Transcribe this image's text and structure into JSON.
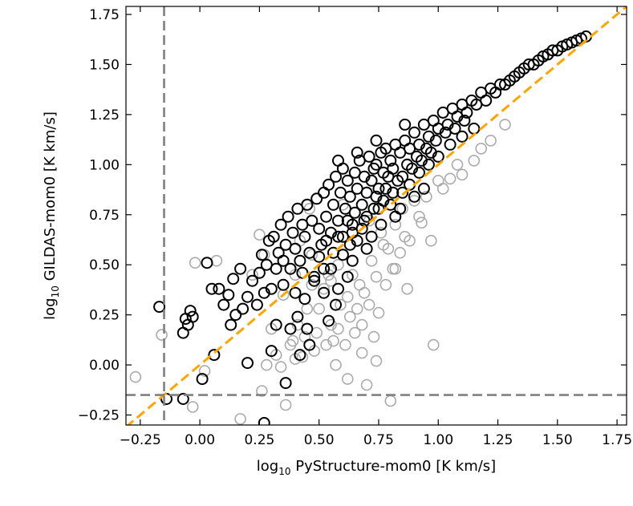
{
  "chart_data": {
    "type": "scatter",
    "xlabel": {
      "prefix": "log",
      "sub": "10",
      "text": " PyStructure-mom0 [K km/s]"
    },
    "ylabel": {
      "prefix": "log",
      "sub": "10",
      "text": " GILDAS-mom0 [K km/s]"
    },
    "xlim": [
      -0.31,
      1.79
    ],
    "ylim": [
      -0.3,
      1.79
    ],
    "xticks": [
      -0.25,
      0.0,
      0.25,
      0.5,
      0.75,
      1.0,
      1.25,
      1.5,
      1.75
    ],
    "yticks": [
      -0.25,
      0.0,
      0.25,
      0.5,
      0.75,
      1.0,
      1.25,
      1.5,
      1.75
    ],
    "xtick_labels": [
      "−0.25",
      "0.00",
      "0.25",
      "0.50",
      "0.75",
      "1.00",
      "1.25",
      "1.50",
      "1.75"
    ],
    "ytick_labels": [
      "−0.25",
      "0.00",
      "0.25",
      "0.50",
      "0.75",
      "1.00",
      "1.25",
      "1.50",
      "1.75"
    ],
    "grid": false,
    "colors": {
      "detected": "#000000",
      "other": "#aaaaaa",
      "one_to_one": "#ffa500",
      "threshold": "#808080"
    },
    "reference_lines": [
      {
        "type": "one-to-one",
        "style": "dashed",
        "color": "#ffa500"
      },
      {
        "type": "vertical",
        "x": -0.15,
        "style": "dashed",
        "color": "#808080"
      },
      {
        "type": "horizontal",
        "y": -0.15,
        "style": "dashed",
        "color": "#808080"
      }
    ],
    "series": [
      {
        "marker": "open-circle",
        "color": "#aaaaaa",
        "points": [
          [
            -0.27,
            -0.06
          ],
          [
            -0.16,
            0.15
          ],
          [
            -0.02,
            0.51
          ],
          [
            -0.03,
            -0.21
          ],
          [
            0.02,
            -0.03
          ],
          [
            0.07,
            0.52
          ],
          [
            0.17,
            -0.27
          ],
          [
            0.22,
            0.45
          ],
          [
            0.25,
            0.65
          ],
          [
            0.27,
            0.55
          ],
          [
            0.26,
            -0.13
          ],
          [
            0.28,
            0.0
          ],
          [
            0.3,
            0.18
          ],
          [
            0.32,
            0.05
          ],
          [
            0.34,
            -0.01
          ],
          [
            0.35,
            0.35
          ],
          [
            0.36,
            -0.2
          ],
          [
            0.38,
            0.1
          ],
          [
            0.39,
            0.12
          ],
          [
            0.4,
            0.45
          ],
          [
            0.41,
            0.2
          ],
          [
            0.42,
            0.62
          ],
          [
            0.43,
            0.04
          ],
          [
            0.44,
            0.14
          ],
          [
            0.45,
            0.28
          ],
          [
            0.46,
            0.78
          ],
          [
            0.47,
            0.4
          ],
          [
            0.48,
            0.07
          ],
          [
            0.49,
            0.16
          ],
          [
            0.5,
            0.28
          ],
          [
            0.52,
            0.38
          ],
          [
            0.53,
            0.1
          ],
          [
            0.54,
            0.45
          ],
          [
            0.55,
            0.2
          ],
          [
            0.56,
            0.12
          ],
          [
            0.57,
            0.0
          ],
          [
            0.58,
            0.5
          ],
          [
            0.59,
            0.3
          ],
          [
            0.6,
            0.8
          ],
          [
            0.61,
            0.1
          ],
          [
            0.62,
            0.34
          ],
          [
            0.63,
            0.24
          ],
          [
            0.64,
            0.45
          ],
          [
            0.65,
            0.16
          ],
          [
            0.66,
            0.28
          ],
          [
            0.67,
            0.4
          ],
          [
            0.68,
            0.2
          ],
          [
            0.69,
            0.36
          ],
          [
            0.7,
            -0.1
          ],
          [
            0.71,
            0.3
          ],
          [
            0.72,
            0.52
          ],
          [
            0.73,
            0.14
          ],
          [
            0.74,
            0.44
          ],
          [
            0.75,
            0.26
          ],
          [
            0.76,
            0.66
          ],
          [
            0.77,
            0.6
          ],
          [
            0.78,
            0.4
          ],
          [
            0.79,
            0.58
          ],
          [
            0.8,
            -0.18
          ],
          [
            0.81,
            0.48
          ],
          [
            0.82,
            0.7
          ],
          [
            0.84,
            0.56
          ],
          [
            0.85,
            0.78
          ],
          [
            0.86,
            0.64
          ],
          [
            0.87,
            0.38
          ],
          [
            0.88,
            0.62
          ],
          [
            0.9,
            0.82
          ],
          [
            0.92,
            0.74
          ],
          [
            0.95,
            0.84
          ],
          [
            0.97,
            0.62
          ],
          [
            0.98,
            0.1
          ],
          [
            1.0,
            0.92
          ],
          [
            1.02,
            0.88
          ],
          [
            1.05,
            0.93
          ],
          [
            1.08,
            1.0
          ],
          [
            1.1,
            0.95
          ],
          [
            1.15,
            1.02
          ],
          [
            1.18,
            1.08
          ],
          [
            1.22,
            1.12
          ],
          [
            1.28,
            1.2
          ],
          [
            0.68,
            0.06
          ],
          [
            0.74,
            0.02
          ],
          [
            0.62,
            -0.07
          ],
          [
            0.55,
            0.42
          ],
          [
            0.47,
            0.55
          ],
          [
            0.82,
            0.48
          ],
          [
            0.58,
            0.18
          ],
          [
            0.71,
            0.72
          ],
          [
            0.93,
            0.71
          ],
          [
            0.4,
            0.03
          ]
        ]
      },
      {
        "marker": "open-circle",
        "color": "#000000",
        "points": [
          [
            -0.17,
            0.29
          ],
          [
            -0.14,
            -0.17
          ],
          [
            -0.07,
            0.16
          ],
          [
            -0.06,
            0.23
          ],
          [
            -0.05,
            0.2
          ],
          [
            -0.04,
            0.27
          ],
          [
            -0.03,
            0.24
          ],
          [
            -0.07,
            -0.17
          ],
          [
            0.01,
            -0.07
          ],
          [
            0.03,
            0.51
          ],
          [
            0.05,
            0.38
          ],
          [
            0.06,
            0.05
          ],
          [
            0.08,
            0.38
          ],
          [
            0.1,
            0.3
          ],
          [
            0.12,
            0.35
          ],
          [
            0.13,
            0.2
          ],
          [
            0.14,
            0.43
          ],
          [
            0.15,
            0.25
          ],
          [
            0.17,
            0.48
          ],
          [
            0.18,
            0.28
          ],
          [
            0.2,
            0.34
          ],
          [
            0.2,
            0.01
          ],
          [
            0.22,
            0.42
          ],
          [
            0.24,
            0.3
          ],
          [
            0.25,
            0.46
          ],
          [
            0.26,
            0.55
          ],
          [
            0.27,
            0.36
          ],
          [
            0.28,
            0.5
          ],
          [
            0.29,
            0.62
          ],
          [
            0.3,
            0.38
          ],
          [
            0.31,
            0.64
          ],
          [
            0.32,
            0.2
          ],
          [
            0.33,
            0.56
          ],
          [
            0.34,
            0.7
          ],
          [
            0.35,
            0.4
          ],
          [
            0.36,
            0.6
          ],
          [
            0.37,
            0.74
          ],
          [
            0.38,
            0.48
          ],
          [
            0.39,
            0.66
          ],
          [
            0.4,
            0.58
          ],
          [
            0.41,
            0.78
          ],
          [
            0.42,
            0.52
          ],
          [
            0.43,
            0.7
          ],
          [
            0.44,
            0.64
          ],
          [
            0.45,
            0.8
          ],
          [
            0.46,
            0.56
          ],
          [
            0.47,
            0.72
          ],
          [
            0.48,
            0.44
          ],
          [
            0.49,
            0.83
          ],
          [
            0.5,
            0.68
          ],
          [
            0.51,
            0.6
          ],
          [
            0.52,
            0.86
          ],
          [
            0.53,
            0.74
          ],
          [
            0.54,
            0.9
          ],
          [
            0.55,
            0.66
          ],
          [
            0.56,
            0.8
          ],
          [
            0.57,
            0.94
          ],
          [
            0.58,
            0.72
          ],
          [
            0.59,
            0.86
          ],
          [
            0.6,
            0.98
          ],
          [
            0.61,
            0.78
          ],
          [
            0.62,
            0.92
          ],
          [
            0.63,
            0.84
          ],
          [
            0.64,
            0.7
          ],
          [
            0.65,
            0.96
          ],
          [
            0.66,
            0.88
          ],
          [
            0.67,
            1.02
          ],
          [
            0.68,
            0.8
          ],
          [
            0.69,
            0.94
          ],
          [
            0.7,
            0.86
          ],
          [
            0.71,
            1.04
          ],
          [
            0.72,
            0.92
          ],
          [
            0.73,
            0.98
          ],
          [
            0.74,
            1.0
          ],
          [
            0.75,
            0.88
          ],
          [
            0.76,
            1.06
          ],
          [
            0.77,
            0.96
          ],
          [
            0.78,
            1.08
          ],
          [
            0.79,
            0.94
          ],
          [
            0.8,
            1.02
          ],
          [
            0.81,
            0.98
          ],
          [
            0.82,
            1.1
          ],
          [
            0.84,
            1.06
          ],
          [
            0.86,
            1.12
          ],
          [
            0.88,
            1.08
          ],
          [
            0.9,
            1.16
          ],
          [
            0.92,
            1.1
          ],
          [
            0.94,
            1.2
          ],
          [
            0.96,
            1.14
          ],
          [
            0.98,
            1.22
          ],
          [
            1.0,
            1.18
          ],
          [
            1.02,
            1.26
          ],
          [
            1.04,
            1.2
          ],
          [
            1.06,
            1.28
          ],
          [
            1.08,
            1.24
          ],
          [
            1.1,
            1.3
          ],
          [
            1.12,
            1.26
          ],
          [
            1.14,
            1.32
          ],
          [
            1.16,
            1.3
          ],
          [
            1.18,
            1.36
          ],
          [
            1.2,
            1.32
          ],
          [
            1.22,
            1.38
          ],
          [
            1.24,
            1.36
          ],
          [
            1.26,
            1.4
          ],
          [
            1.28,
            1.4
          ],
          [
            1.3,
            1.42
          ],
          [
            1.32,
            1.44
          ],
          [
            1.34,
            1.46
          ],
          [
            1.36,
            1.48
          ],
          [
            1.38,
            1.5
          ],
          [
            1.4,
            1.5
          ],
          [
            1.42,
            1.52
          ],
          [
            1.44,
            1.54
          ],
          [
            1.46,
            1.55
          ],
          [
            1.48,
            1.57
          ],
          [
            1.5,
            1.57
          ],
          [
            1.52,
            1.59
          ],
          [
            1.54,
            1.6
          ],
          [
            1.56,
            1.61
          ],
          [
            1.58,
            1.62
          ],
          [
            1.6,
            1.63
          ],
          [
            1.62,
            1.64
          ],
          [
            0.27,
            -0.29
          ],
          [
            0.3,
            0.07
          ],
          [
            0.36,
            -0.09
          ],
          [
            0.38,
            0.18
          ],
          [
            0.41,
            0.24
          ],
          [
            0.44,
            0.33
          ],
          [
            0.46,
            0.1
          ],
          [
            0.48,
            0.42
          ],
          [
            0.52,
            0.36
          ],
          [
            0.55,
            0.48
          ],
          [
            0.57,
            0.3
          ],
          [
            0.6,
            0.55
          ],
          [
            0.63,
            0.6
          ],
          [
            0.66,
            0.62
          ],
          [
            0.68,
            0.68
          ],
          [
            0.72,
            0.64
          ],
          [
            0.75,
            0.78
          ],
          [
            0.8,
            0.8
          ],
          [
            0.85,
            0.86
          ],
          [
            0.88,
            0.9
          ],
          [
            0.92,
            0.96
          ],
          [
            0.96,
            1.0
          ],
          [
            1.0,
            1.04
          ],
          [
            1.05,
            1.1
          ],
          [
            1.1,
            1.14
          ],
          [
            1.15,
            1.18
          ],
          [
            0.32,
            0.48
          ],
          [
            0.35,
            0.52
          ],
          [
            0.4,
            0.36
          ],
          [
            0.43,
            0.46
          ],
          [
            0.5,
            0.54
          ],
          [
            0.53,
            0.62
          ],
          [
            0.58,
            0.64
          ],
          [
            0.62,
            0.72
          ],
          [
            0.65,
            0.76
          ],
          [
            0.7,
            0.74
          ],
          [
            0.74,
            0.84
          ],
          [
            0.78,
            0.88
          ],
          [
            0.83,
            0.92
          ],
          [
            0.87,
            1.0
          ],
          [
            0.91,
            1.04
          ],
          [
            0.95,
            1.08
          ],
          [
            0.99,
            1.12
          ],
          [
            1.03,
            1.16
          ],
          [
            1.07,
            1.18
          ],
          [
            1.11,
            1.22
          ],
          [
            0.52,
            0.48
          ],
          [
            0.56,
            0.56
          ],
          [
            0.6,
            0.64
          ],
          [
            0.64,
            0.66
          ],
          [
            0.69,
            0.72
          ],
          [
            0.73,
            0.78
          ],
          [
            0.77,
            0.82
          ],
          [
            0.81,
            0.86
          ],
          [
            0.85,
            0.94
          ],
          [
            0.89,
            0.98
          ],
          [
            0.93,
            1.02
          ],
          [
            0.97,
            1.06
          ],
          [
            0.74,
            1.12
          ],
          [
            0.86,
            1.2
          ],
          [
            0.66,
            1.06
          ],
          [
            0.58,
            1.02
          ],
          [
            0.62,
            0.44
          ],
          [
            0.58,
            0.38
          ],
          [
            0.64,
            0.52
          ],
          [
            0.7,
            0.58
          ],
          [
            0.76,
            0.7
          ],
          [
            0.82,
            0.74
          ],
          [
            0.84,
            0.78
          ],
          [
            0.9,
            0.84
          ],
          [
            0.94,
            0.88
          ],
          [
            0.54,
            0.22
          ],
          [
            0.45,
            0.18
          ],
          [
            0.42,
            0.05
          ]
        ]
      }
    ]
  }
}
